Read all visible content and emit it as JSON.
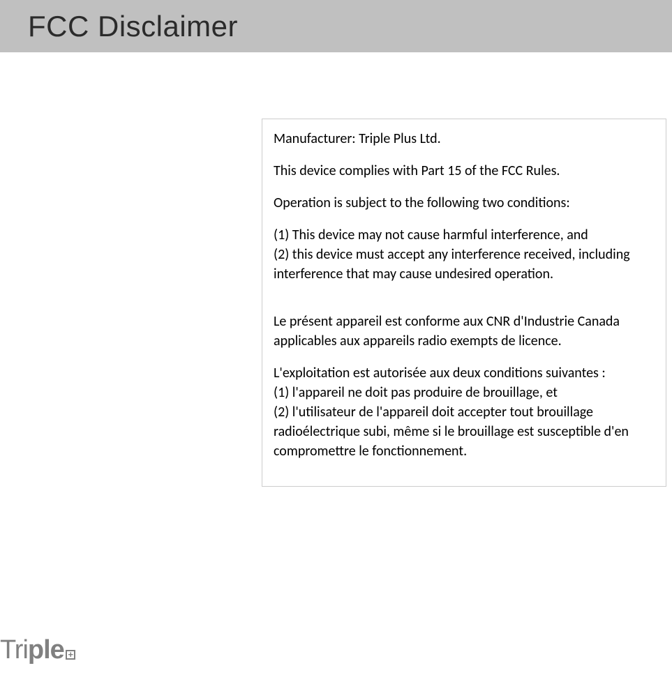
{
  "header": {
    "title": "FCC Disclaimer"
  },
  "content": {
    "manufacturer": "Manufacturer: Triple Plus Ltd.",
    "compliance": "This device complies with Part 15 of the FCC Rules.",
    "operation_intro": "Operation is subject to the following two conditions:",
    "condition1": "(1) This device may not cause harmful interference, and",
    "condition2": "(2) this device must accept any interference received, including interference that may cause undesired operation.",
    "fr_intro": "Le présent appareil est conforme aux CNR d'Industrie Canada applicables aux appareils radio exempts de licence.",
    "fr_operation": "L'exploitation est autorisée aux deux conditions suivantes :",
    "fr_condition1": "(1) l'appareil ne doit pas produire de brouillage, et",
    "fr_condition2": "(2) l'utilisateur de l'appareil doit accepter tout brouillage radioélectrique subi, même si le brouillage est susceptible d'en compromettre le fonctionnement."
  },
  "logo": {
    "part1": "Tri",
    "part2": "ple",
    "plus": "+"
  }
}
